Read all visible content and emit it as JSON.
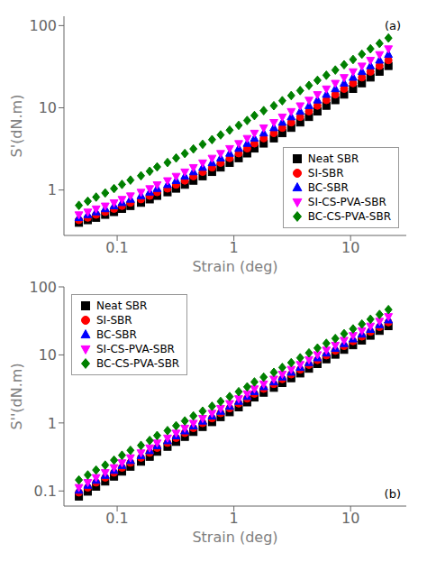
{
  "chart_data": [
    {
      "type": "scatter",
      "log": true,
      "grid": false,
      "legend": "lower right",
      "xlabel": "Strain (deg)",
      "ylabel": "S'(dN.m)",
      "annotations": [
        "(a)"
      ],
      "x": [
        0.047,
        0.056,
        0.066,
        0.079,
        0.094,
        0.11,
        0.13,
        0.16,
        0.19,
        0.22,
        0.27,
        0.32,
        0.38,
        0.45,
        0.54,
        0.65,
        0.77,
        0.92,
        1.1,
        1.3,
        1.5,
        1.8,
        2.2,
        2.6,
        3.1,
        3.7,
        4.4,
        5.2,
        6.2,
        7.4,
        8.8,
        10.5,
        12.5,
        14.8,
        17.7,
        21.1
      ],
      "xlim": [
        0.035,
        30
      ],
      "xticks": [
        0.1,
        1,
        10
      ],
      "ylim": [
        0.28,
        130
      ],
      "yticks": [
        1,
        10,
        100
      ],
      "series": [
        {
          "name": "Neat SBR",
          "color": "black",
          "marker": "square",
          "values": [
            0.4,
            0.43,
            0.46,
            0.5,
            0.54,
            0.59,
            0.64,
            0.7,
            0.77,
            0.85,
            0.94,
            1.04,
            1.16,
            1.3,
            1.47,
            1.66,
            1.88,
            2.14,
            2.44,
            2.79,
            3.2,
            3.68,
            4.25,
            4.92,
            5.71,
            6.64,
            7.74,
            9.03,
            10.6,
            12.4,
            14.5,
            17.0,
            19.9,
            23.4,
            27.5,
            32.3
          ]
        },
        {
          "name": "SI-SBR",
          "color": "red",
          "marker": "circle",
          "values": [
            0.43,
            0.46,
            0.5,
            0.54,
            0.59,
            0.64,
            0.7,
            0.77,
            0.85,
            0.94,
            1.04,
            1.16,
            1.3,
            1.47,
            1.66,
            1.88,
            2.14,
            2.44,
            2.79,
            3.2,
            3.68,
            4.25,
            4.92,
            5.71,
            6.64,
            7.74,
            9.03,
            10.6,
            12.4,
            14.5,
            17.0,
            19.9,
            23.4,
            27.5,
            32.3,
            37.9
          ]
        },
        {
          "name": "BC-SBR",
          "color": "blue",
          "marker": "triangle",
          "values": [
            0.46,
            0.5,
            0.54,
            0.59,
            0.64,
            0.7,
            0.77,
            0.85,
            0.94,
            1.04,
            1.16,
            1.3,
            1.47,
            1.66,
            1.88,
            2.14,
            2.44,
            2.79,
            3.2,
            3.68,
            4.25,
            4.92,
            5.71,
            6.64,
            7.74,
            9.03,
            10.6,
            12.4,
            14.5,
            17.0,
            19.9,
            23.4,
            27.5,
            32.3,
            37.9,
            44.5
          ]
        },
        {
          "name": "SI-CS-PVA-SBR",
          "color": "magenta",
          "marker": "triangle_down",
          "values": [
            0.5,
            0.54,
            0.59,
            0.64,
            0.7,
            0.77,
            0.85,
            0.94,
            1.04,
            1.16,
            1.3,
            1.47,
            1.66,
            1.88,
            2.14,
            2.44,
            2.79,
            3.2,
            3.68,
            4.25,
            4.92,
            5.71,
            6.64,
            7.74,
            9.03,
            10.6,
            12.4,
            14.5,
            17.0,
            19.9,
            23.4,
            27.5,
            32.3,
            37.9,
            44.5,
            52.3
          ]
        },
        {
          "name": "BC-CS-PVA-SBR",
          "color": "green",
          "marker": "diamond",
          "values": [
            0.65,
            0.73,
            0.82,
            0.92,
            1.04,
            1.17,
            1.32,
            1.49,
            1.69,
            1.91,
            2.16,
            2.45,
            2.78,
            3.16,
            3.6,
            4.1,
            4.68,
            5.35,
            6.12,
            7.01,
            8.05,
            9.24,
            10.6,
            12.2,
            14.1,
            16.2,
            18.7,
            21.6,
            24.9,
            28.8,
            33.4,
            38.7,
            44.9,
            52.2,
            60.7,
            70.6
          ]
        }
      ]
    },
    {
      "type": "scatter",
      "log": true,
      "grid": false,
      "legend": "upper left",
      "xlabel": "Strain (deg)",
      "ylabel": "S''(dN.m)",
      "annotations": [
        "(b)"
      ],
      "x": [
        0.047,
        0.056,
        0.066,
        0.079,
        0.094,
        0.11,
        0.13,
        0.16,
        0.19,
        0.22,
        0.27,
        0.32,
        0.38,
        0.45,
        0.54,
        0.65,
        0.77,
        0.92,
        1.1,
        1.3,
        1.5,
        1.8,
        2.2,
        2.6,
        3.1,
        3.7,
        4.4,
        5.2,
        6.2,
        7.4,
        8.8,
        10.5,
        12.5,
        14.8,
        17.7,
        21.1
      ],
      "xlim": [
        0.035,
        30
      ],
      "xticks": [
        0.1,
        1,
        10
      ],
      "ylim": [
        0.06,
        100
      ],
      "yticks": [
        0.1,
        1,
        10,
        100
      ],
      "series": [
        {
          "name": "Neat SBR",
          "color": "black",
          "marker": "square",
          "values": [
            0.083,
            0.098,
            0.116,
            0.138,
            0.163,
            0.193,
            0.228,
            0.27,
            0.319,
            0.378,
            0.447,
            0.528,
            0.625,
            0.739,
            0.874,
            1.03,
            1.22,
            1.44,
            1.7,
            2.01,
            2.37,
            2.79,
            3.29,
            3.87,
            4.55,
            5.35,
            6.28,
            7.36,
            8.64,
            10.1,
            11.9,
            13.9,
            16.3,
            19.2,
            22.6,
            26.5
          ]
        },
        {
          "name": "SI-SBR",
          "color": "red",
          "marker": "circle",
          "values": [
            0.095,
            0.112,
            0.133,
            0.157,
            0.186,
            0.22,
            0.26,
            0.308,
            0.364,
            0.43,
            0.509,
            0.601,
            0.711,
            0.84,
            0.993,
            1.17,
            1.39,
            1.64,
            1.93,
            2.28,
            2.69,
            3.17,
            3.73,
            4.4,
            5.17,
            6.08,
            7.14,
            8.38,
            9.83,
            11.5,
            13.5,
            15.9,
            18.6,
            21.9,
            25.7,
            30.1
          ]
        },
        {
          "name": "BC-SBR",
          "color": "blue",
          "marker": "triangle",
          "values": [
            0.102,
            0.121,
            0.143,
            0.169,
            0.2,
            0.236,
            0.279,
            0.33,
            0.39,
            0.461,
            0.545,
            0.644,
            0.761,
            0.9,
            1.06,
            1.26,
            1.48,
            1.75,
            2.07,
            2.44,
            2.88,
            3.4,
            4.0,
            4.72,
            5.55,
            6.53,
            7.68,
            9.02,
            10.6,
            12.4,
            14.6,
            17.1,
            20.1,
            23.6,
            27.7,
            32.5
          ]
        },
        {
          "name": "SI-CS-PVA-SBR",
          "color": "magenta",
          "marker": "triangle_down",
          "values": [
            0.113,
            0.134,
            0.158,
            0.187,
            0.221,
            0.261,
            0.309,
            0.365,
            0.431,
            0.51,
            0.602,
            0.711,
            0.84,
            0.993,
            1.17,
            1.39,
            1.64,
            1.93,
            2.28,
            2.69,
            3.18,
            3.75,
            4.42,
            5.22,
            6.15,
            7.25,
            8.54,
            10.1,
            11.8,
            13.9,
            16.4,
            19.3,
            22.7,
            26.6,
            31.3,
            36.7
          ]
        },
        {
          "name": "BC-CS-PVA-SBR",
          "color": "green",
          "marker": "diamond",
          "values": [
            0.145,
            0.172,
            0.203,
            0.24,
            0.284,
            0.335,
            0.396,
            0.468,
            0.553,
            0.653,
            0.771,
            0.91,
            1.07,
            1.27,
            1.49,
            1.76,
            2.07,
            2.44,
            2.88,
            3.39,
            4.0,
            4.71,
            5.54,
            6.53,
            7.69,
            9.06,
            10.7,
            12.6,
            14.8,
            17.4,
            20.5,
            24.1,
            28.4,
            33.4,
            39.3,
            46.3
          ]
        }
      ]
    }
  ]
}
